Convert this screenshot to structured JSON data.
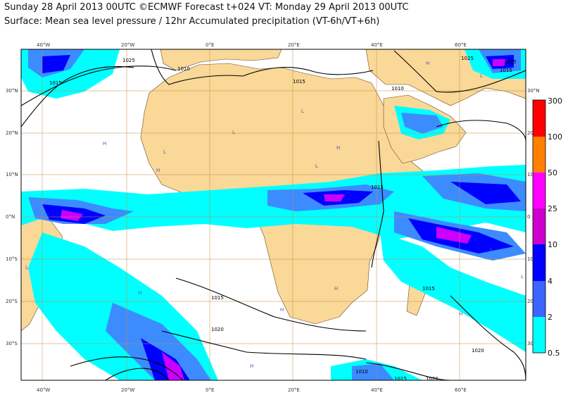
{
  "title_line1": "Sunday 28 April 2013 00UTC ©ECMWF Forecast t+024 VT: Monday 29 April 2013 00UTC",
  "title_line2": "Surface: Mean sea level pressure / 12hr Accumulated precipitation (VT-6h/VT+6h)",
  "lon_ticks": [
    "40°W",
    "20°W",
    "0°E",
    "20°E",
    "40°E",
    "60°E"
  ],
  "lat_ticks_left": [
    "30°N",
    "20°N",
    "10°N",
    "0°N",
    "10°S",
    "20°S",
    "30°S"
  ],
  "lat_ticks_right": [
    "30°N",
    "20",
    "10",
    "0",
    "10",
    "20",
    "30"
  ],
  "legend": {
    "levels": [
      "300",
      "100",
      "50",
      "25",
      "10",
      "4",
      "2",
      "0.5"
    ],
    "colors": [
      "#ff0000",
      "#ff8000",
      "#ff00ff",
      "#cc00cc",
      "#0000ff",
      "#3c64ff",
      "#00ffff",
      "#00ffff"
    ]
  },
  "isobars": [
    "1025",
    "1020",
    "1015",
    "1010",
    "1015",
    "1010",
    "1015",
    "1015",
    "1020",
    "1020",
    "1015",
    "1010",
    "1025",
    "1025",
    "1015",
    "1015"
  ],
  "pressure_centers": [
    "L",
    "L",
    "L",
    "L",
    "H",
    "H",
    "H",
    "H",
    "L",
    "H",
    "L",
    "H",
    "H",
    "H",
    "L",
    "L",
    "H"
  ],
  "colors": {
    "ocean": "#ffffff",
    "land": "#f9d898",
    "grid": "#c58a40",
    "precip_light": "#00ffff",
    "precip_moderate": "#3c8cff",
    "precip_heavy": "#0000ff",
    "precip_very_heavy": "#cc00ff"
  }
}
